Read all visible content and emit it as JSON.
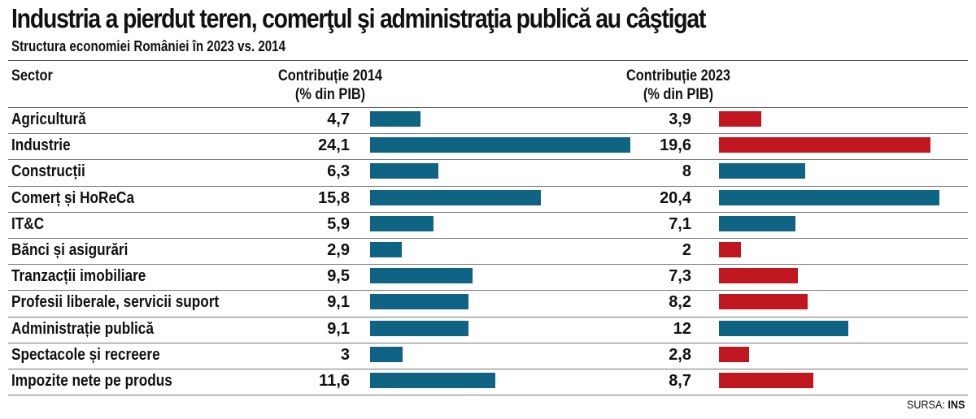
{
  "title": "Industria a pierdut teren, comerţul şi administraţia publică au câştigat",
  "subtitle": "Structura economiei României în 2023 vs. 2014",
  "headers": {
    "sector": "Sector",
    "c2014_line1": "Contribuție 2014",
    "c2014_line2": "(% din PIB)",
    "c2023_line1": "Contribuție 2023",
    "c2023_line2": "(% din PIB)"
  },
  "source": {
    "label": "SURSA: ",
    "value": "INS"
  },
  "colors": {
    "blue": "#0e6482",
    "red": "#c0161f"
  },
  "chart_data": {
    "type": "bar",
    "categories": [
      "Agricultură",
      "Industrie",
      "Construcții",
      "Comerț și HoReCa",
      "IT&C",
      "Bănci și asigurări",
      "Tranzacții imobiliare",
      "Profesii liberale, servicii suport",
      "Administrație publică",
      "Spectacole și recreere",
      "Impozite nete pe produs"
    ],
    "series": [
      {
        "labels": [
          "4,7",
          "24,1",
          "6,3",
          "15,8",
          "5,9",
          "2,9",
          "9,5",
          "9,1",
          "9,1",
          "3",
          "11,6"
        ],
        "values": [
          4.7,
          24.1,
          6.3,
          15.8,
          5.9,
          2.9,
          9.5,
          9.1,
          9.1,
          3,
          11.6
        ]
      },
      {
        "labels": [
          "3,9",
          "19,6",
          "8",
          "20,4",
          "7,1",
          "2",
          "7,3",
          "8,2",
          "12",
          "2,8",
          "8,7"
        ],
        "values": [
          3.9,
          19.6,
          8,
          20.4,
          7.1,
          2,
          7.3,
          8.2,
          12,
          2.8,
          8.7
        ]
      }
    ]
  }
}
